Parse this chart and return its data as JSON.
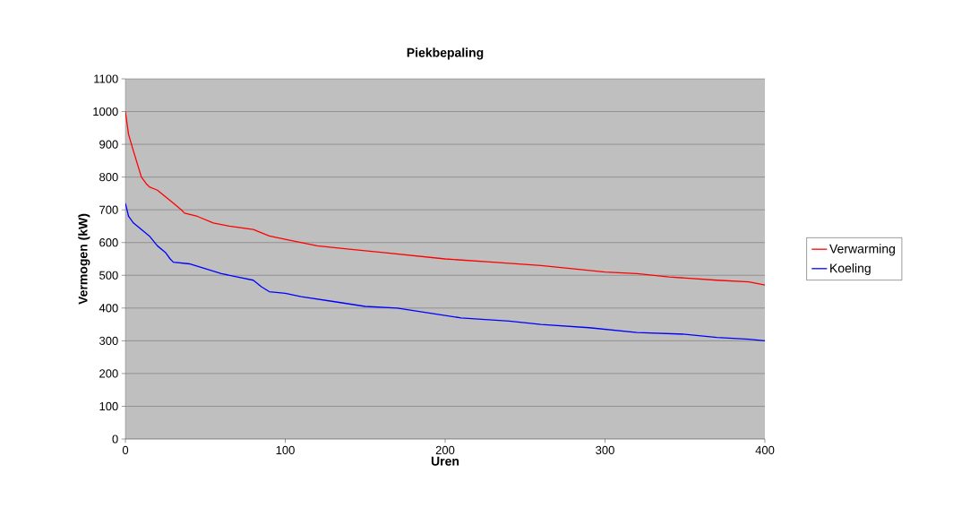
{
  "chart_data": {
    "type": "line",
    "title": "Piekbepaling",
    "xlabel": "Uren",
    "ylabel": "Vermogen (kW)",
    "xlim": [
      0,
      400
    ],
    "xticks": [
      0,
      100,
      200,
      300,
      400
    ],
    "ylim": [
      0,
      1100
    ],
    "yticks": [
      0,
      100,
      200,
      300,
      400,
      500,
      600,
      700,
      800,
      900,
      1000,
      1100
    ],
    "grid": "y",
    "legend": "right",
    "series": [
      {
        "name": "Verwarming",
        "color": "#ff0000",
        "x": [
          0,
          2,
          5,
          10,
          13,
          15,
          20,
          25,
          30,
          35,
          37,
          45,
          55,
          65,
          80,
          90,
          100,
          120,
          140,
          160,
          180,
          200,
          230,
          260,
          280,
          300,
          320,
          340,
          370,
          390,
          400
        ],
        "values": [
          1000,
          930,
          880,
          800,
          780,
          770,
          760,
          740,
          720,
          700,
          690,
          680,
          660,
          650,
          640,
          620,
          610,
          590,
          580,
          570,
          560,
          550,
          540,
          530,
          520,
          510,
          505,
          495,
          485,
          480,
          470
        ]
      },
      {
        "name": "Koeling",
        "color": "#0000ff",
        "x": [
          0,
          2,
          5,
          10,
          15,
          20,
          25,
          28,
          30,
          40,
          50,
          60,
          70,
          80,
          85,
          90,
          100,
          110,
          130,
          150,
          170,
          190,
          210,
          240,
          260,
          290,
          320,
          350,
          370,
          390,
          400
        ],
        "values": [
          720,
          680,
          660,
          640,
          620,
          590,
          570,
          550,
          540,
          535,
          520,
          505,
          495,
          485,
          465,
          450,
          445,
          435,
          420,
          405,
          400,
          385,
          370,
          360,
          350,
          340,
          325,
          320,
          310,
          305,
          300
        ]
      }
    ]
  }
}
